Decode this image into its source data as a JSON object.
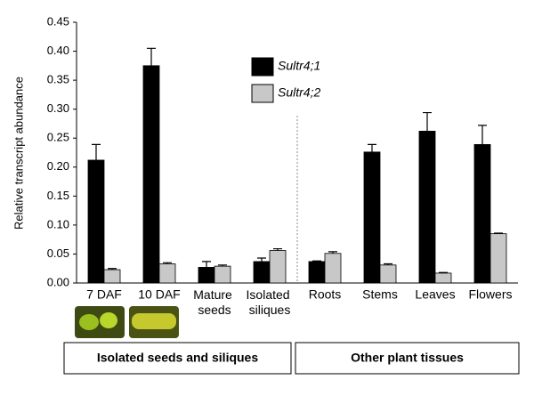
{
  "chart_data": {
    "type": "bar",
    "y_label": "Relative transcript abundance",
    "categories": [
      "7 DAF",
      "10 DAF",
      "Mature seeds",
      "Isolated siliques",
      "Roots",
      "Stems",
      "Leaves",
      "Flowers"
    ],
    "series": [
      {
        "name": "Sultr4;1",
        "color": "#000000",
        "values": [
          0.212,
          0.375,
          0.027,
          0.037,
          0.037,
          0.226,
          0.262,
          0.239
        ],
        "errors": [
          0.027,
          0.03,
          0.01,
          0.006,
          0.001,
          0.013,
          0.032,
          0.033
        ]
      },
      {
        "name": "Sultr4;2",
        "color": "#c8c8c8",
        "values": [
          0.023,
          0.033,
          0.029,
          0.056,
          0.051,
          0.031,
          0.017,
          0.085
        ],
        "errors": [
          0.002,
          0.002,
          0.002,
          0.003,
          0.003,
          0.002,
          0.001,
          0.001
        ]
      }
    ],
    "ylim": [
      0,
      0.45
    ],
    "yticks": [
      {
        "value": 0,
        "label": "0.00"
      },
      {
        "value": 0.05,
        "label": "0.05"
      },
      {
        "value": 0.1,
        "label": "0.10"
      },
      {
        "value": 0.15,
        "label": "0.15"
      },
      {
        "value": 0.2,
        "label": "0.20"
      },
      {
        "value": 0.25,
        "label": "0.25"
      },
      {
        "value": 0.3,
        "label": "0.30"
      },
      {
        "value": 0.35,
        "label": "0.35"
      },
      {
        "value": 0.4,
        "label": "0.40"
      },
      {
        "value": 0.45,
        "label": "0.45"
      }
    ],
    "groups": [
      "Isolated seeds and siliques",
      "Other plant tissues"
    ],
    "grid": false
  }
}
